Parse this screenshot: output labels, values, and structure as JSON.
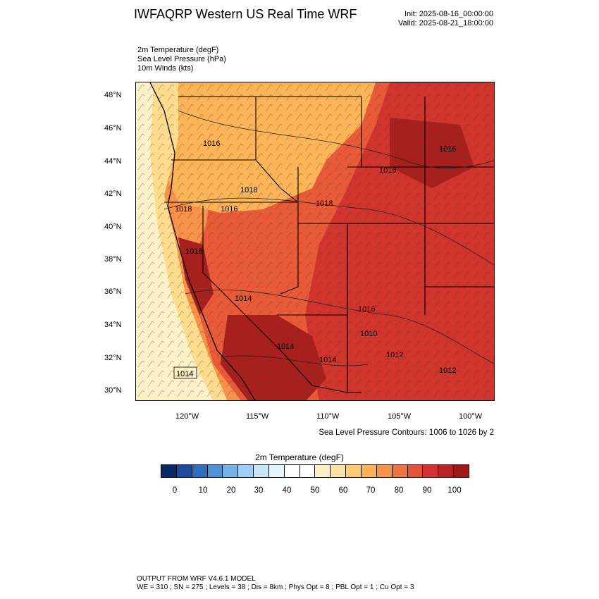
{
  "header": {
    "title": "IWFAQRP Western US Real Time WRF",
    "init": "Init: 2025-08-16_00:00:00",
    "valid": "Valid: 2025-08-21_18:00:00"
  },
  "fields": [
    "2m Temperature   (degF)",
    "Sea Level Pressure   (hPa)",
    "10m Winds   (kts)"
  ],
  "map": {
    "lat_labels": [
      "48°N",
      "46°N",
      "44°N",
      "42°N",
      "40°N",
      "38°N",
      "36°N",
      "34°N",
      "32°N",
      "30°N"
    ],
    "lon_labels": [
      "120°W",
      "115°W",
      "110°W",
      "105°W",
      "100°W"
    ],
    "isobar_labels": [
      "1016",
      "1018",
      "1018",
      "1018",
      "1016",
      "1018",
      "1016",
      "1016",
      "1016",
      "1014",
      "1014",
      "1012",
      "1010",
      "1014",
      "1014",
      "1012"
    ],
    "colors": {
      "ocean_cool": "#fdf1c7",
      "coast_warm": "#fddc8e",
      "mild": "#fcb458",
      "warm": "#f6924a",
      "hot": "#e95b38",
      "very_hot": "#d0342c",
      "extreme": "#a8201d"
    }
  },
  "slp_note": "Sea Level Pressure Contours: 1006 to 1026 by 2",
  "colorbar": {
    "title": "2m Temperature  (degF)",
    "labels": [
      "0",
      "10",
      "20",
      "30",
      "40",
      "50",
      "60",
      "70",
      "80",
      "90",
      "100"
    ],
    "colors": [
      "#0b2a63",
      "#1c4d9c",
      "#2f6fc0",
      "#4d92d3",
      "#74b3e6",
      "#9dd0f2",
      "#c6e6f8",
      "#e6f4fb",
      "#ffffff",
      "#ffffff",
      "#fdf0c5",
      "#fde3a3",
      "#fdcb74",
      "#fbb356",
      "#f6954a",
      "#ef7440",
      "#e4533a",
      "#d33431",
      "#ba2326",
      "#9d191b"
    ]
  },
  "footer": {
    "line1": "OUTPUT FROM WRF V4.6.1 MODEL",
    "line2": "WE = 310 ; SN = 275 ; Levels = 38 ; Dis = 8km ; Phys Opt = 8 ; PBL Opt = 1 ; Cu Opt = 3"
  }
}
